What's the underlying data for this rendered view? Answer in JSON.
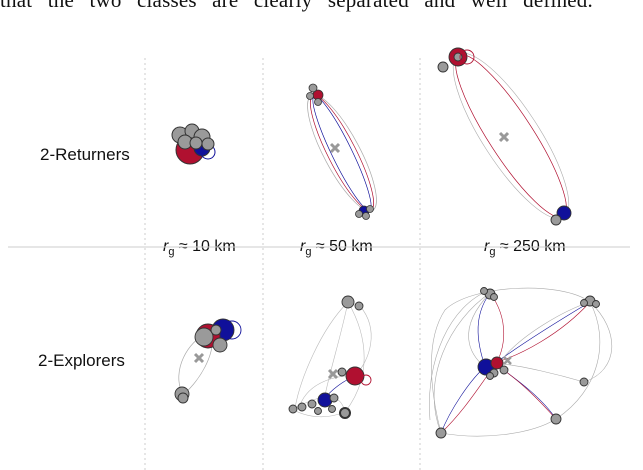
{
  "top_text": "that the two classes are clearly separated and well defined.",
  "rows": [
    {
      "label": "2-Returners"
    },
    {
      "label": "2-Explorers"
    }
  ],
  "radius_labels": [
    {
      "symbol": "r",
      "subscript": "g",
      "value": "≈ 10 km"
    },
    {
      "symbol": "r",
      "subscript": "g",
      "value": "≈ 50 km"
    },
    {
      "symbol": "r",
      "subscript": "g",
      "value": "≈ 250 km"
    }
  ],
  "colors": {
    "location_gray": "#9a9a9a",
    "home_red": "#b01030",
    "second_blue": "#10109a",
    "center_mark": "#999999",
    "divider": "#cccccc"
  },
  "icons": {
    "center_of_mass": "x-mark-icon"
  }
}
